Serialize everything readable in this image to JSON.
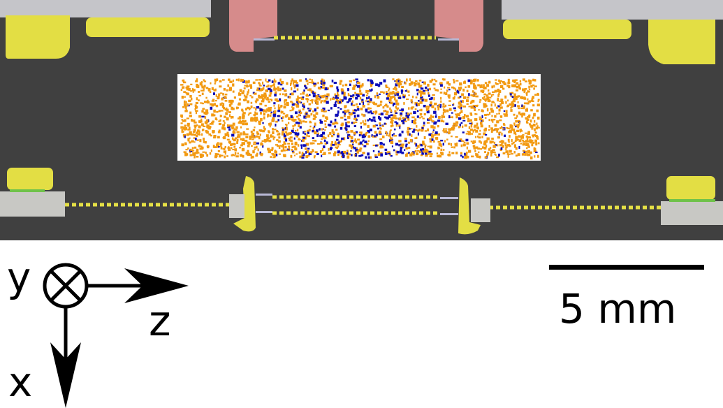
{
  "axes": {
    "y_label": "y",
    "z_label": "z",
    "x_label": "x"
  },
  "scale_bar": {
    "label": "5 mm"
  },
  "colors": {
    "background": "#404040",
    "ion_cloud_bg": "#ffffff",
    "species_a": "#f29a12",
    "species_b": "#0b0bb8",
    "electrode_yellow": "#e3de44",
    "electrode_pink": "#d68b8b",
    "electrode_gray": "#c8c8c8",
    "dashed_line": "#e5e046"
  }
}
